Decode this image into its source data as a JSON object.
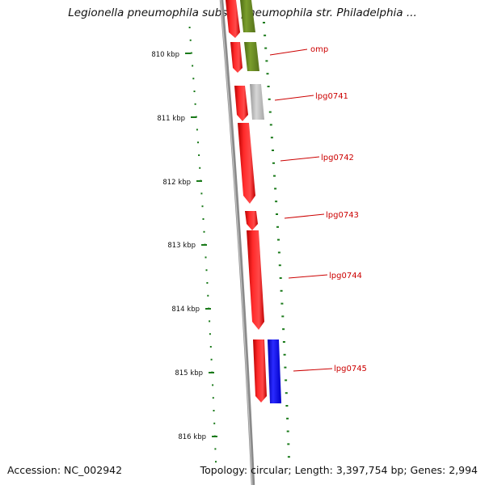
{
  "title": "Legionella pneumophila subsp. pneumophila str. Philadelphia ...",
  "footer": {
    "accession": "Accession: NC_002942",
    "summary": "Topology: circular; Length: 3,397,754 bp; Genes: 2,994"
  },
  "colors": {
    "backbone": "#8a8a8a",
    "tick": "#1a7a1a",
    "red_gene": "#ee1111",
    "green_gene": "#6b8e23",
    "grey_gene": "#bbbbbb",
    "blue_gene": "#1111ee",
    "label": "#cc0000"
  },
  "ruler": {
    "unit": "kbp",
    "major_ticks": [
      "810 kbp",
      "811 kbp",
      "812 kbp",
      "813 kbp",
      "814 kbp",
      "815 kbp",
      "816 kbp"
    ]
  },
  "genes": [
    {
      "label": "",
      "strand": "reverse",
      "color": "red"
    },
    {
      "label": "",
      "strand": "forward",
      "color": "green"
    },
    {
      "label": "",
      "strand": "reverse",
      "color": "red"
    },
    {
      "label": "omp",
      "strand": "forward",
      "color": "green"
    },
    {
      "label": "",
      "strand": "reverse",
      "color": "red"
    },
    {
      "label": "lpg0741",
      "strand": "forward",
      "color": "grey"
    },
    {
      "label": "lpg0742",
      "strand": "reverse",
      "color": "red"
    },
    {
      "label": "lpg0743",
      "strand": "reverse",
      "color": "red"
    },
    {
      "label": "lpg0744",
      "strand": "reverse",
      "color": "red"
    },
    {
      "label": "",
      "strand": "reverse",
      "color": "red"
    },
    {
      "label": "lpg0745",
      "strand": "forward",
      "color": "blue"
    }
  ]
}
